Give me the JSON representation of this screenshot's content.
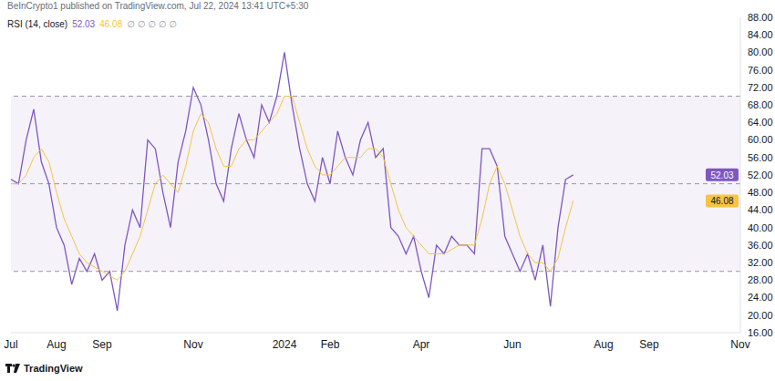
{
  "chart_data": {
    "type": "line",
    "title": "RSI (14, close)",
    "annotations": {
      "header": "BeInCrypto1 published on TradingView.com, Jul 22, 2024 13:41 UTC+5:30",
      "symbols": "∅ ∅ ∅ ∅ ∅",
      "watermark": "TradingView"
    },
    "categories": [
      "Jul",
      null,
      null,
      null,
      null,
      null,
      "Aug",
      null,
      null,
      null,
      null,
      null,
      "Sep",
      null,
      null,
      null,
      null,
      null,
      null,
      null,
      null,
      null,
      null,
      null,
      "Nov",
      null,
      null,
      null,
      null,
      null,
      null,
      null,
      null,
      null,
      null,
      null,
      "2024",
      null,
      null,
      null,
      null,
      null,
      "Feb",
      null,
      null,
      null,
      null,
      null,
      null,
      null,
      null,
      null,
      null,
      null,
      "Apr",
      null,
      null,
      null,
      null,
      null,
      null,
      null,
      null,
      null,
      null,
      null,
      "Jun",
      null,
      null,
      null,
      null,
      null,
      null,
      null,
      null,
      null,
      null,
      null,
      "Aug",
      null,
      null,
      null,
      null,
      null,
      "Sep",
      null,
      null,
      null,
      null,
      null,
      null,
      null,
      null,
      null,
      null,
      null,
      "Nov"
    ],
    "series": [
      {
        "color": "#7e57c2",
        "values": [
          51,
          50,
          60,
          67,
          55,
          50,
          40,
          36,
          27,
          33,
          30,
          34,
          28,
          30,
          21,
          36,
          44,
          40,
          60,
          58,
          48,
          40,
          55,
          62,
          72,
          68,
          60,
          50,
          46,
          58,
          66,
          60,
          56,
          68,
          64,
          70,
          80,
          68,
          58,
          50,
          46,
          56,
          50,
          62,
          56,
          52,
          60,
          64,
          56,
          58,
          40,
          38,
          34,
          38,
          30,
          24,
          36,
          34,
          38,
          36,
          36,
          34,
          58,
          58,
          54,
          38,
          34,
          30,
          34,
          28,
          36,
          22,
          40,
          51,
          52.03,
          null,
          null,
          null,
          null,
          null,
          null,
          null,
          null,
          null,
          null,
          null,
          null,
          null,
          null,
          null,
          null,
          null,
          null,
          null,
          null,
          null,
          null
        ]
      },
      {
        "color": "#f5c542",
        "values": [
          50,
          50,
          52,
          56,
          58,
          55,
          48,
          42,
          38,
          34,
          32,
          31,
          30,
          29,
          28,
          30,
          34,
          38,
          44,
          50,
          52,
          50,
          48,
          54,
          62,
          66,
          64,
          58,
          54,
          54,
          58,
          60,
          60,
          62,
          64,
          66,
          70,
          70,
          64,
          58,
          54,
          52,
          52,
          54,
          56,
          56,
          56,
          58,
          58,
          56,
          50,
          44,
          40,
          38,
          36,
          34,
          34,
          34,
          35,
          36,
          36,
          36,
          42,
          50,
          54,
          50,
          44,
          38,
          34,
          32,
          32,
          30,
          33,
          40,
          46.08,
          null,
          null,
          null,
          null,
          null,
          null,
          null,
          null,
          null,
          null,
          null,
          null,
          null,
          null,
          null,
          null,
          null,
          null,
          null,
          null,
          null,
          null
        ]
      }
    ],
    "ylim": [
      16,
      88
    ],
    "yticks": [
      {
        "value": 16,
        "label": "16.00"
      },
      {
        "value": 20,
        "label": "20.00"
      },
      {
        "value": 24,
        "label": "24.00"
      },
      {
        "value": 28,
        "label": "28.00"
      },
      {
        "value": 32,
        "label": "32.00"
      },
      {
        "value": 36,
        "label": "36.00"
      },
      {
        "value": 40,
        "label": "40.00"
      },
      {
        "value": 44,
        "label": "44.00"
      },
      {
        "value": 48,
        "label": "48.00"
      },
      {
        "value": 52,
        "label": "52.00"
      },
      {
        "value": 56,
        "label": "56.00"
      },
      {
        "value": 60,
        "label": "60.00"
      },
      {
        "value": 64,
        "label": "64.00"
      },
      {
        "value": 68,
        "label": "68.00"
      },
      {
        "value": 72,
        "label": "72.00"
      },
      {
        "value": 76,
        "label": "76.00"
      },
      {
        "value": 80,
        "label": "80.00"
      },
      {
        "value": 84,
        "label": "84.00"
      },
      {
        "value": 88,
        "label": "88.00"
      }
    ],
    "reference_lines": [
      30,
      50,
      70
    ],
    "band": [
      30,
      70
    ],
    "grid": false
  }
}
